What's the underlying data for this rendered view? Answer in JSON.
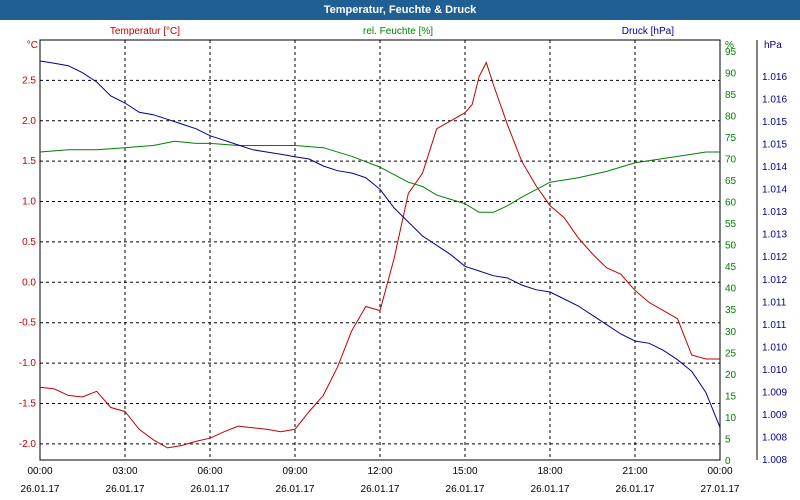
{
  "window": {
    "title": "Temperatur, Feuchte & Druck"
  },
  "chart_data": {
    "type": "line",
    "title": "Temperatur, Feuchte & Druck",
    "grid": true,
    "x_ticks": [
      {
        "time": "00:00",
        "date": "26.01.17"
      },
      {
        "time": "03:00",
        "date": "26.01.17"
      },
      {
        "time": "06:00",
        "date": "26.01.17"
      },
      {
        "time": "09:00",
        "date": "26.01.17"
      },
      {
        "time": "12:00",
        "date": "26.01.17"
      },
      {
        "time": "15:00",
        "date": "26.01.17"
      },
      {
        "time": "18:00",
        "date": "26.01.17"
      },
      {
        "time": "21:00",
        "date": "26.01.17"
      },
      {
        "time": "00:00",
        "date": "27.01.17"
      }
    ],
    "x_range_hours": [
      0,
      24
    ],
    "axes": {
      "temperature": {
        "unit": "°C",
        "label": "Temperatur [°C]",
        "color": "#c00000",
        "range": [
          -2.2,
          3.0
        ],
        "ticks": [
          "2.5",
          "2.0",
          "1.5",
          "1.0",
          "0.5",
          "0.0",
          "-0.5",
          "-1.0",
          "-1.5",
          "-2.0"
        ]
      },
      "humidity": {
        "unit": "%",
        "label": "rel. Feuchte [%]",
        "color": "#008000",
        "range": [
          0,
          97.5
        ],
        "ticks": [
          "95",
          "90",
          "85",
          "80",
          "75",
          "70",
          "65",
          "60",
          "55",
          "50",
          "45",
          "40",
          "35",
          "30",
          "25",
          "20",
          "15",
          "10",
          "5",
          "0"
        ]
      },
      "pressure": {
        "unit": "hPa",
        "label": "Druck [hPa]",
        "color": "#00008b",
        "range": [
          1007.8,
          1016.8
        ],
        "ticks": [
          "1.016",
          "1.016",
          "1.015",
          "1.015",
          "1.014",
          "1.014",
          "1.013",
          "1.013",
          "1.012",
          "1.012",
          "1.011",
          "1.011",
          "1.010",
          "1.010",
          "1.009",
          "1.009",
          "1.008",
          "1.008"
        ]
      }
    },
    "series": [
      {
        "name": "Temperatur [°C]",
        "axis": "temperature",
        "color": "#c00000",
        "x": [
          0,
          0.5,
          1,
          1.5,
          2,
          2.5,
          3,
          3.5,
          4,
          4.5,
          5,
          5.5,
          6,
          6.5,
          7,
          7.5,
          8,
          8.5,
          9,
          9.5,
          10,
          10.5,
          11,
          11.5,
          12,
          12.5,
          13,
          13.5,
          14,
          14.5,
          15,
          15.25,
          15.5,
          15.75,
          16,
          16.5,
          17,
          17.5,
          18,
          18.5,
          19,
          19.5,
          20,
          20.5,
          21,
          21.5,
          22,
          22.5,
          23,
          23.5,
          24
        ],
        "values": [
          -1.3,
          -1.32,
          -1.4,
          -1.42,
          -1.35,
          -1.55,
          -1.6,
          -1.82,
          -1.95,
          -2.05,
          -2.02,
          -1.97,
          -1.93,
          -1.85,
          -1.78,
          -1.8,
          -1.82,
          -1.85,
          -1.82,
          -1.6,
          -1.4,
          -1.05,
          -0.6,
          -0.3,
          -0.35,
          0.3,
          1.1,
          1.35,
          1.9,
          2.0,
          2.1,
          2.2,
          2.55,
          2.72,
          2.45,
          1.95,
          1.5,
          1.2,
          0.95,
          0.8,
          0.55,
          0.35,
          0.18,
          0.1,
          -0.1,
          -0.25,
          -0.35,
          -0.45,
          -0.9,
          -0.95,
          -0.95
        ]
      },
      {
        "name": "rel. Feuchte [%]",
        "axis": "humidity",
        "color": "#008000",
        "x": [
          0,
          1,
          2,
          3,
          4,
          4.75,
          5.5,
          6,
          7,
          8,
          9,
          10,
          11,
          12,
          13,
          13.5,
          14,
          14.5,
          15,
          15.5,
          16,
          16.5,
          17,
          18,
          19,
          20,
          21,
          22,
          23,
          23.5,
          24
        ],
        "values": [
          71.5,
          72,
          72,
          72.5,
          73,
          74,
          73.5,
          73.5,
          73,
          73,
          73,
          72.5,
          70.5,
          68,
          64.5,
          63.5,
          61.5,
          60.5,
          59.5,
          57.5,
          57.5,
          59,
          61,
          64.5,
          65.5,
          67,
          69,
          70,
          71,
          71.5,
          71.5
        ]
      },
      {
        "name": "Druck [hPa]",
        "axis": "pressure",
        "color": "#00008b",
        "x": [
          0,
          0.5,
          1,
          1.5,
          2,
          2.5,
          3,
          3.5,
          4,
          4.5,
          5,
          5.5,
          6,
          6.5,
          7,
          7.5,
          8,
          8.5,
          9,
          9.5,
          10,
          10.5,
          11,
          11.5,
          12,
          12.5,
          13,
          13.5,
          14,
          14.5,
          15,
          15.5,
          16,
          16.5,
          17,
          17.5,
          18,
          18.5,
          19,
          19.5,
          20,
          20.5,
          21,
          21.5,
          22,
          22.5,
          23,
          23.5,
          24
        ],
        "values": [
          1016.35,
          1016.3,
          1016.25,
          1016.1,
          1015.9,
          1015.6,
          1015.45,
          1015.25,
          1015.2,
          1015.1,
          1015.0,
          1014.9,
          1014.75,
          1014.65,
          1014.55,
          1014.45,
          1014.4,
          1014.35,
          1014.3,
          1014.25,
          1014.1,
          1014.0,
          1013.95,
          1013.85,
          1013.6,
          1013.2,
          1012.9,
          1012.6,
          1012.4,
          1012.2,
          1011.95,
          1011.85,
          1011.75,
          1011.7,
          1011.55,
          1011.45,
          1011.4,
          1011.25,
          1011.1,
          1010.9,
          1010.7,
          1010.5,
          1010.35,
          1010.3,
          1010.15,
          1009.95,
          1009.7,
          1009.25,
          1008.5
        ]
      }
    ]
  }
}
